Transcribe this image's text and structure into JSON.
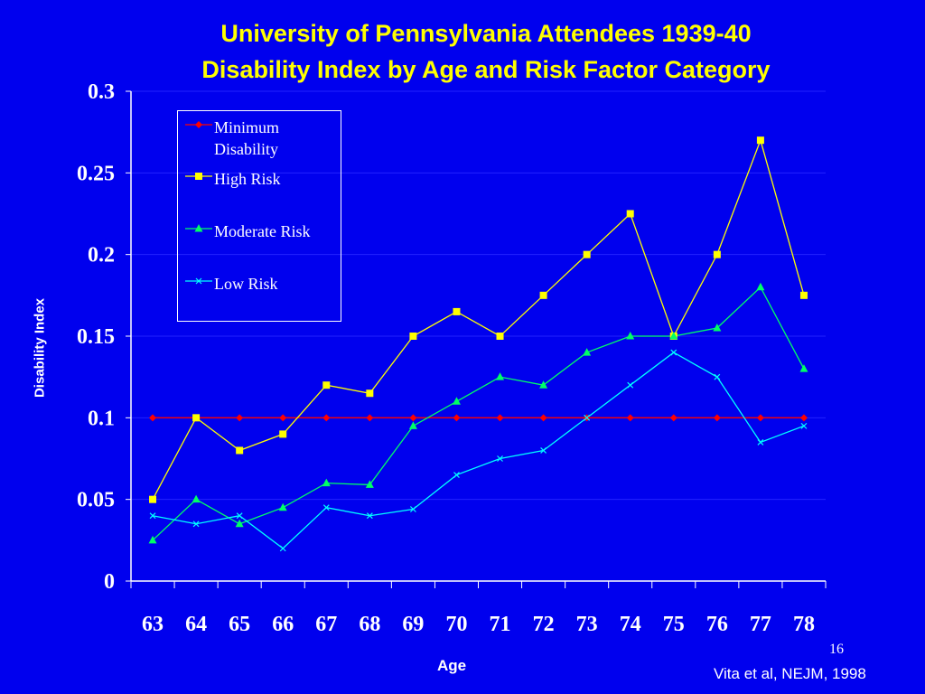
{
  "slide": {
    "title_line1": "University of Pennsylvania Attendees 1939-40",
    "title_line2": "Disability Index by Age and Risk Factor Category",
    "page_number": "16",
    "citation": "Vita et al, NEJM, 1998"
  },
  "chart_data": {
    "type": "line",
    "xlabel": "Age",
    "ylabel": "Disability Index",
    "ylim": [
      0,
      0.3
    ],
    "yticks": [
      "0",
      "0.05",
      "0.1",
      "0.15",
      "0.2",
      "0.25",
      "0.3"
    ],
    "categories": [
      "63",
      "64",
      "65",
      "66",
      "67",
      "68",
      "69",
      "70",
      "71",
      "72",
      "73",
      "74",
      "75",
      "76",
      "77",
      "78"
    ],
    "grid": true,
    "legend_position": "top-left",
    "series": [
      {
        "name": "Minimum Disability",
        "color": "#ff0000",
        "marker": "diamond",
        "values": [
          0.1,
          0.1,
          0.1,
          0.1,
          0.1,
          0.1,
          0.1,
          0.1,
          0.1,
          0.1,
          0.1,
          0.1,
          0.1,
          0.1,
          0.1,
          0.1
        ]
      },
      {
        "name": "High Risk",
        "color": "#ffff00",
        "marker": "square",
        "values": [
          0.05,
          0.1,
          0.08,
          0.09,
          0.12,
          0.115,
          0.15,
          0.165,
          0.15,
          0.175,
          0.2,
          0.225,
          0.15,
          0.2,
          0.27,
          0.175
        ]
      },
      {
        "name": "Moderate Risk",
        "color": "#00ff66",
        "marker": "triangle",
        "values": [
          0.025,
          0.05,
          0.035,
          0.045,
          0.06,
          0.059,
          0.095,
          0.11,
          0.125,
          0.12,
          0.14,
          0.15,
          0.15,
          0.155,
          0.18,
          0.13
        ]
      },
      {
        "name": "Low Risk",
        "color": "#00ffff",
        "marker": "x",
        "values": [
          0.04,
          0.035,
          0.04,
          0.02,
          0.045,
          0.04,
          0.044,
          0.065,
          0.075,
          0.08,
          0.1,
          0.12,
          0.14,
          0.125,
          0.085,
          0.095
        ]
      }
    ]
  }
}
